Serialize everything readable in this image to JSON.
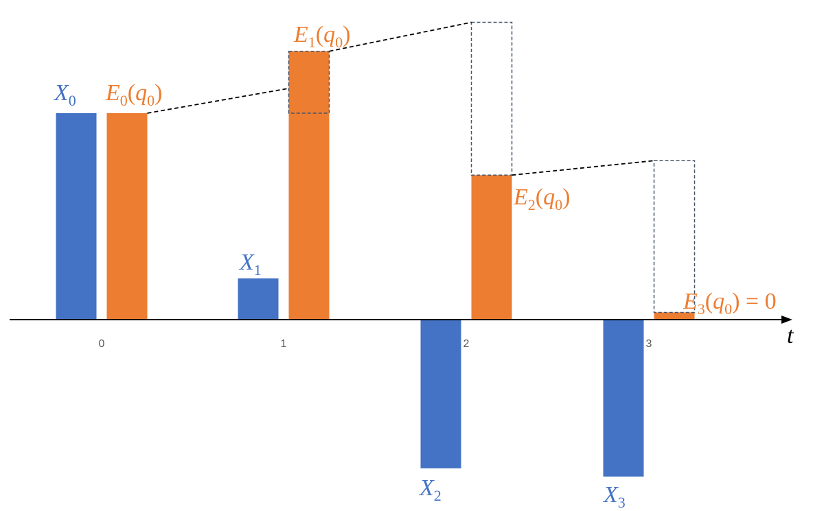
{
  "chart_data": {
    "type": "bar",
    "categories": [
      "0",
      "1",
      "2",
      "3"
    ],
    "xlabel": "t",
    "ylabel": "",
    "ylim": [
      -1.0,
      1.55
    ],
    "grid": false,
    "legend": "none",
    "series": [
      {
        "key": "X",
        "color": "#4472C4",
        "values": [
          1.0,
          0.2,
          -0.72,
          -0.76
        ]
      },
      {
        "key": "E",
        "color": "#ED7D31",
        "values": [
          1.0,
          1.3,
          0.7,
          0.035
        ]
      }
    ],
    "annotations": {
      "projection_boxes": [
        {
          "category": "1",
          "from": 1.0,
          "to": 1.3,
          "note": "dashed box on E_1 bar"
        },
        {
          "category": "2",
          "from": 0.7,
          "to": 1.44,
          "note": "dashed outline above E_2"
        },
        {
          "category": "3",
          "from": 0.035,
          "to": 0.77,
          "note": "dashed outline above E_3"
        }
      ],
      "connectors": [
        {
          "from_cat": 0,
          "from_val": 1.0,
          "to_cat": 1,
          "to_val": 1.12
        },
        {
          "from_cat": 1,
          "from_val": 1.3,
          "to_cat": 2,
          "to_val": 1.44
        },
        {
          "from_cat": 2,
          "from_val": 0.7,
          "to_cat": 3,
          "to_val": 0.77
        }
      ]
    },
    "labels": {
      "X0": {
        "base": "X",
        "sub": "0",
        "tail": ""
      },
      "X1": {
        "base": "X",
        "sub": "1",
        "tail": ""
      },
      "X2": {
        "base": "X",
        "sub": "2",
        "tail": ""
      },
      "X3": {
        "base": "X",
        "sub": "3",
        "tail": ""
      },
      "E0": {
        "base": "E",
        "sub": "0",
        "mid": "(q",
        "sub2": "0",
        "tail": ")"
      },
      "E1": {
        "base": "E",
        "sub": "1",
        "mid": "(q",
        "sub2": "0",
        "tail": ")"
      },
      "E2": {
        "base": "E",
        "sub": "2",
        "mid": "(q",
        "sub2": "0",
        "tail": ")"
      },
      "E3": {
        "base": "E",
        "sub": "3",
        "mid": "(q",
        "sub2": "0",
        "tail": ") = 0"
      }
    }
  }
}
